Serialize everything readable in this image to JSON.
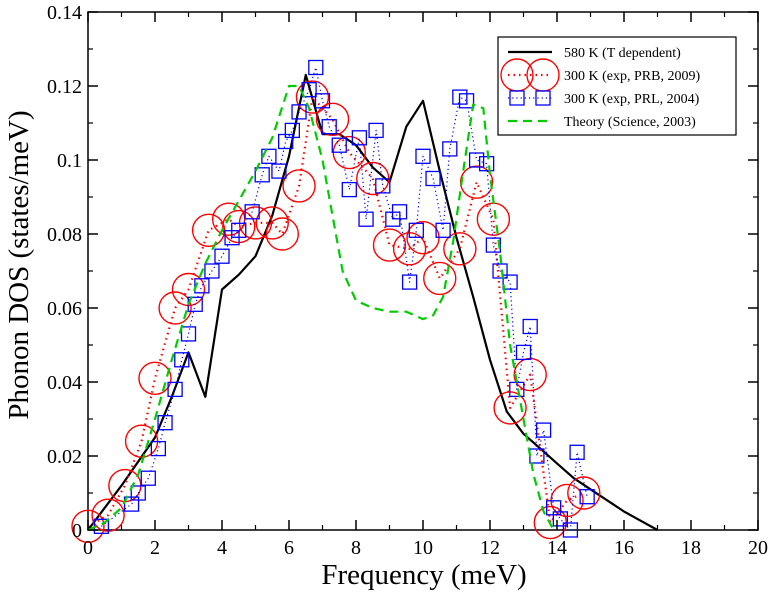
{
  "chart_data": {
    "type": "line",
    "title": "",
    "xlabel": "Frequency (meV)",
    "ylabel": "Phonon DOS (states/meV)",
    "xlim": [
      0,
      20
    ],
    "ylim": [
      0,
      0.14
    ],
    "x_ticks": [
      {
        "value": 0,
        "label": "0"
      },
      {
        "value": 2,
        "label": "2"
      },
      {
        "value": 4,
        "label": "4"
      },
      {
        "value": 6,
        "label": "6"
      },
      {
        "value": 8,
        "label": "8"
      },
      {
        "value": 10,
        "label": "10"
      },
      {
        "value": 12,
        "label": "12"
      },
      {
        "value": 14,
        "label": "14"
      },
      {
        "value": 16,
        "label": "16"
      },
      {
        "value": 18,
        "label": "18"
      },
      {
        "value": 20,
        "label": "20"
      }
    ],
    "y_ticks": [
      {
        "value": 0,
        "label": "0"
      },
      {
        "value": 0.02,
        "label": "0.02"
      },
      {
        "value": 0.04,
        "label": "0.04"
      },
      {
        "value": 0.06,
        "label": "0.06"
      },
      {
        "value": 0.08,
        "label": "0.08"
      },
      {
        "value": 0.1,
        "label": "0.1"
      },
      {
        "value": 0.12,
        "label": "0.12"
      },
      {
        "value": 0.14,
        "label": "0.14"
      }
    ],
    "legend_position": "top-right",
    "series": [
      {
        "name": "580 K (T dependent)",
        "style": "solid-line",
        "color": "#000000",
        "points": [
          [
            0,
            0
          ],
          [
            1,
            0.012
          ],
          [
            2,
            0.025
          ],
          [
            2.5,
            0.036
          ],
          [
            3,
            0.048
          ],
          [
            3.5,
            0.036
          ],
          [
            4,
            0.065
          ],
          [
            4.5,
            0.069
          ],
          [
            5,
            0.074
          ],
          [
            5.5,
            0.085
          ],
          [
            6,
            0.101
          ],
          [
            6.5,
            0.123
          ],
          [
            7,
            0.107
          ],
          [
            7.5,
            0.107
          ],
          [
            8,
            0.104
          ],
          [
            8.5,
            0.098
          ],
          [
            9,
            0.094
          ],
          [
            9.5,
            0.109
          ],
          [
            10,
            0.116
          ],
          [
            10.5,
            0.097
          ],
          [
            11,
            0.079
          ],
          [
            11.5,
            0.063
          ],
          [
            12,
            0.046
          ],
          [
            12.5,
            0.032
          ],
          [
            13,
            0.026
          ],
          [
            13.5,
            0.022
          ],
          [
            14,
            0.018
          ],
          [
            14.5,
            0.014
          ],
          [
            15,
            0.011
          ],
          [
            15.5,
            0.008
          ],
          [
            16,
            0.005
          ],
          [
            17,
            0.0
          ]
        ]
      },
      {
        "name": "300 K (exp, PRB, 2009)",
        "style": "circles-dotted",
        "color": "#ff0000",
        "points": [
          [
            0,
            0.001
          ],
          [
            0.6,
            0.004
          ],
          [
            1.1,
            0.012
          ],
          [
            1.6,
            0.024
          ],
          [
            2,
            0.041
          ],
          [
            2.6,
            0.06
          ],
          [
            3,
            0.065
          ],
          [
            3.6,
            0.081
          ],
          [
            4.2,
            0.084
          ],
          [
            4.5,
            0.082
          ],
          [
            5,
            0.083
          ],
          [
            5.5,
            0.083
          ],
          [
            5.8,
            0.08
          ],
          [
            6.3,
            0.093
          ],
          [
            6.7,
            0.117
          ],
          [
            7.3,
            0.111
          ],
          [
            7.8,
            0.102
          ],
          [
            8.5,
            0.095
          ],
          [
            9,
            0.077
          ],
          [
            9.6,
            0.076
          ],
          [
            10,
            0.079
          ],
          [
            10.5,
            0.068
          ],
          [
            11.1,
            0.076
          ],
          [
            11.6,
            0.094
          ],
          [
            12.1,
            0.084
          ],
          [
            12.6,
            0.033
          ],
          [
            13.2,
            0.042
          ],
          [
            13.8,
            0.002
          ],
          [
            14.3,
            0.008
          ],
          [
            14.8,
            0.01
          ]
        ]
      },
      {
        "name": "300 K (exp, PRL, 2004)",
        "style": "squares-dotted",
        "color": "#0000ff",
        "points": [
          [
            0.4,
            0.001
          ],
          [
            1.3,
            0.007
          ],
          [
            1.5,
            0.01
          ],
          [
            1.8,
            0.014
          ],
          [
            2.1,
            0.022
          ],
          [
            2.3,
            0.029
          ],
          [
            2.6,
            0.038
          ],
          [
            2.8,
            0.046
          ],
          [
            3,
            0.053
          ],
          [
            3.2,
            0.061
          ],
          [
            3.4,
            0.066
          ],
          [
            3.7,
            0.07
          ],
          [
            4,
            0.074
          ],
          [
            4.3,
            0.079
          ],
          [
            4.5,
            0.081
          ],
          [
            4.9,
            0.086
          ],
          [
            5.2,
            0.096
          ],
          [
            5.4,
            0.101
          ],
          [
            5.7,
            0.097
          ],
          [
            5.9,
            0.105
          ],
          [
            6.1,
            0.108
          ],
          [
            6.3,
            0.113
          ],
          [
            6.6,
            0.119
          ],
          [
            6.8,
            0.125
          ],
          [
            7,
            0.116
          ],
          [
            7.2,
            0.109
          ],
          [
            7.5,
            0.104
          ],
          [
            7.8,
            0.092
          ],
          [
            8.1,
            0.106
          ],
          [
            8.3,
            0.084
          ],
          [
            8.6,
            0.108
          ],
          [
            8.8,
            0.093
          ],
          [
            9.1,
            0.084
          ],
          [
            9.3,
            0.086
          ],
          [
            9.6,
            0.067
          ],
          [
            9.8,
            0.081
          ],
          [
            10,
            0.101
          ],
          [
            10.3,
            0.095
          ],
          [
            10.6,
            0.081
          ],
          [
            10.8,
            0.103
          ],
          [
            11.1,
            0.117
          ],
          [
            11.3,
            0.116
          ],
          [
            11.6,
            0.1
          ],
          [
            11.9,
            0.099
          ],
          [
            12.1,
            0.077
          ],
          [
            12.3,
            0.07
          ],
          [
            12.6,
            0.067
          ],
          [
            12.8,
            0.038
          ],
          [
            13,
            0.048
          ],
          [
            13.2,
            0.055
          ],
          [
            13.4,
            0.02
          ],
          [
            13.6,
            0.027
          ],
          [
            13.9,
            0.006
          ],
          [
            14.1,
            0.003
          ],
          [
            14.4,
            0.0
          ],
          [
            14.6,
            0.021
          ],
          [
            14.9,
            0.009
          ]
        ]
      },
      {
        "name": "Theory (Science, 2003)",
        "style": "dashed-line",
        "color": "#00cc00",
        "points": [
          [
            0,
            0.0
          ],
          [
            0.5,
            0.002
          ],
          [
            1,
            0.006
          ],
          [
            1.5,
            0.015
          ],
          [
            2,
            0.03
          ],
          [
            2.5,
            0.046
          ],
          [
            3,
            0.061
          ],
          [
            3.5,
            0.072
          ],
          [
            4,
            0.081
          ],
          [
            4.5,
            0.089
          ],
          [
            5,
            0.097
          ],
          [
            5.5,
            0.106
          ],
          [
            6,
            0.12
          ],
          [
            6.3,
            0.12
          ],
          [
            6.6,
            0.114
          ],
          [
            7,
            0.1
          ],
          [
            7.3,
            0.085
          ],
          [
            7.6,
            0.07
          ],
          [
            8,
            0.062
          ],
          [
            8.5,
            0.06
          ],
          [
            9,
            0.059
          ],
          [
            9.5,
            0.059
          ],
          [
            10,
            0.057
          ],
          [
            10.3,
            0.058
          ],
          [
            10.6,
            0.063
          ],
          [
            10.9,
            0.078
          ],
          [
            11.2,
            0.097
          ],
          [
            11.5,
            0.115
          ],
          [
            11.8,
            0.114
          ],
          [
            12,
            0.096
          ],
          [
            12.3,
            0.075
          ],
          [
            12.6,
            0.05
          ],
          [
            13,
            0.03
          ],
          [
            13.3,
            0.015
          ],
          [
            13.6,
            0.005
          ],
          [
            13.9,
            0.0
          ]
        ]
      }
    ]
  }
}
